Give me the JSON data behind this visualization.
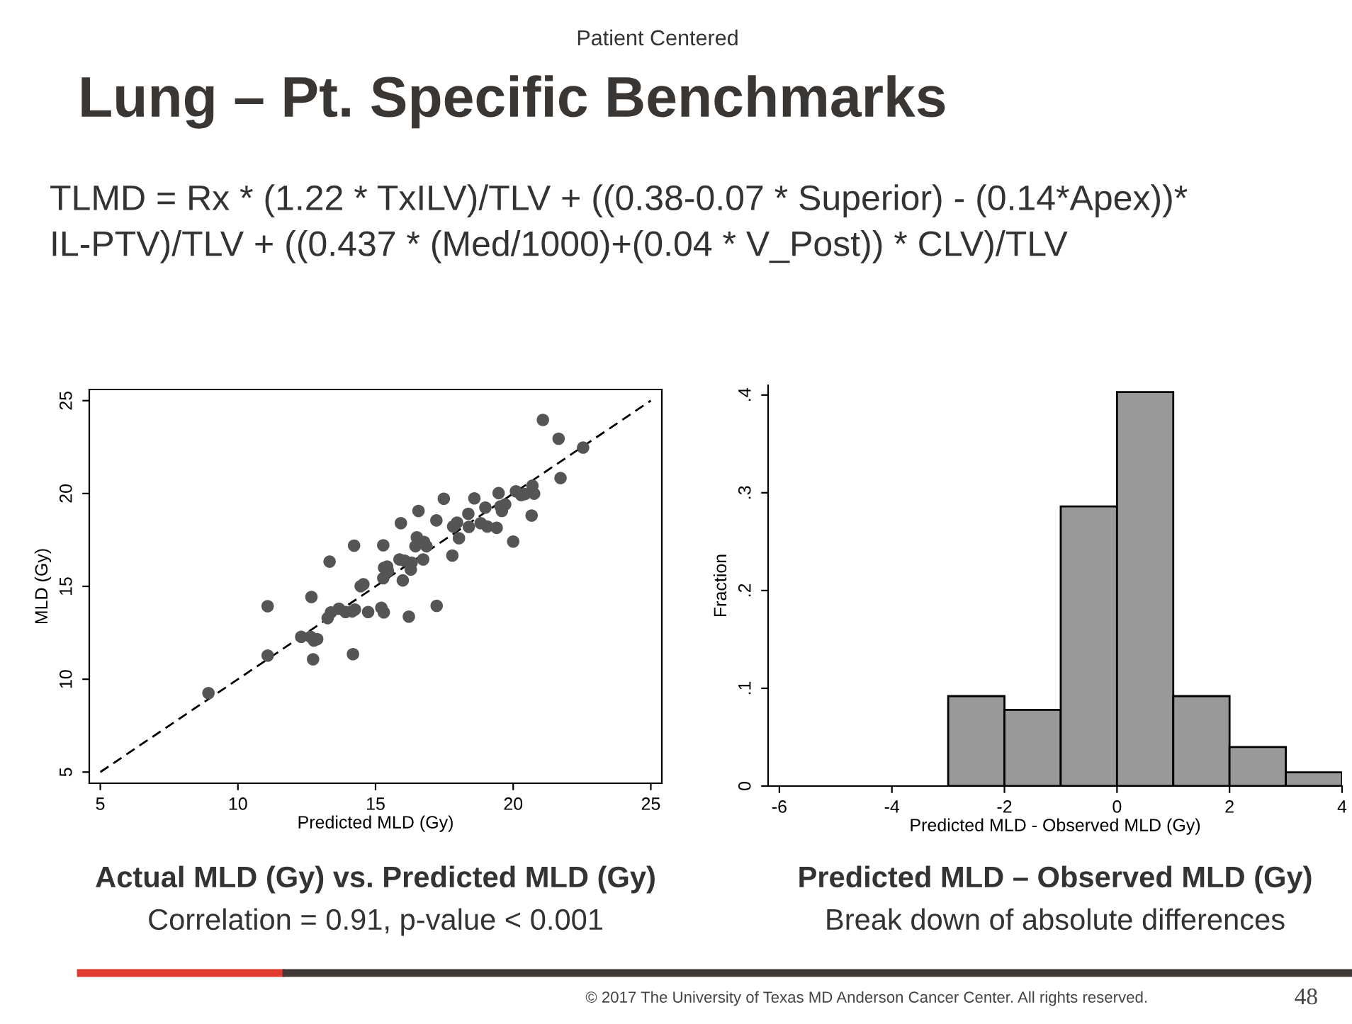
{
  "chart_data": [
    {
      "type": "scatter",
      "title": "Actual MLD (Gy) vs. Predicted MLD (Gy)",
      "subtitle": "Correlation = 0.91, p-value < 0.001",
      "xlabel": "Predicted MLD (Gy)",
      "ylabel": "MLD (Gy)",
      "annotations": [
        "Patient Centered",
        "Lung – Pt. Specific Benchmarks",
        "TLMD = Rx * (1.22 * TxILV)/TLV + ((0.38-0.07 * Superior) - (0.14*Apex))* IL-PTV)/TLV + ((0.437 * (Med/1000)+(0.04 * V_Post)) * CLV)/TLV",
        "© 2017 The University of Texas MD Anderson Cancer Center. All rights reserved.",
        "48"
      ],
      "xlim": [
        4.6,
        25.4
      ],
      "ylim": [
        4.4,
        25.6
      ],
      "xticks": [
        5,
        10,
        15,
        20,
        25
      ],
      "yticks": [
        5,
        10,
        15,
        20,
        25
      ],
      "grid": false,
      "marker": "circle",
      "series": [
        {
          "type": "scatter",
          "color": "#555555",
          "x": [
            8.93,
            11.08,
            11.08,
            12.3,
            12.64,
            12.67,
            12.73,
            12.76,
            12.88,
            13.26,
            13.33,
            13.38,
            13.67,
            13.91,
            14.15,
            14.22,
            14.18,
            14.25,
            14.46,
            14.56,
            14.73,
            15.21,
            15.28,
            15.28,
            15.3,
            15.31,
            15.42,
            15.45,
            15.92,
            15.87,
            15.99,
            16.06,
            16.21,
            16.28,
            16.31,
            16.45,
            16.5,
            16.56,
            16.73,
            16.76,
            16.85,
            17.21,
            17.22,
            17.48,
            17.79,
            17.82,
            17.96,
            18.03,
            18.37,
            18.39,
            18.59,
            18.82,
            18.99,
            19.06,
            19.4,
            19.47,
            19.54,
            19.59,
            19.71,
            20.0,
            20.1,
            20.29,
            20.43,
            20.67,
            20.7,
            20.76,
            21.08,
            21.65,
            21.72,
            22.54
          ],
          "values": [
            9.25,
            13.93,
            11.27,
            12.28,
            12.28,
            14.43,
            11.07,
            12.08,
            12.16,
            13.29,
            16.33,
            13.6,
            13.8,
            13.62,
            13.65,
            17.19,
            11.35,
            13.75,
            15.01,
            15.11,
            13.62,
            13.85,
            17.21,
            15.44,
            13.6,
            16.0,
            16.07,
            15.82,
            18.4,
            16.45,
            15.32,
            16.38,
            13.37,
            15.9,
            16.28,
            17.16,
            17.64,
            19.06,
            16.45,
            17.39,
            17.16,
            18.55,
            13.95,
            19.72,
            16.66,
            18.22,
            18.43,
            17.59,
            18.91,
            18.2,
            19.74,
            18.4,
            19.24,
            18.22,
            18.15,
            20.02,
            19.31,
            19.06,
            19.41,
            17.41,
            20.12,
            19.92,
            19.97,
            18.81,
            20.42,
            19.99,
            23.96,
            22.95,
            20.83,
            22.47
          ]
        },
        {
          "type": "line",
          "color": "#000000",
          "line_style": "dashed",
          "marker": "none",
          "x": [
            5,
            25
          ],
          "values": [
            5,
            25
          ]
        }
      ]
    },
    {
      "type": "histogram",
      "title": "Predicted MLD – Observed MLD (Gy)",
      "subtitle": "Break down of absolute differences",
      "xlabel": "Predicted MLD - Observed MLD (Gy)",
      "ylabel": "Fraction",
      "bins": [
        -3,
        -2,
        -1,
        0,
        1,
        2,
        3,
        4
      ],
      "values": [
        0.092,
        0.078,
        0.286,
        0.403,
        0.092,
        0.04,
        0.014
      ],
      "color": "#999999",
      "xlim": [
        -6.2,
        4
      ],
      "ylim": [
        0,
        0.41
      ],
      "xticks": [
        -6,
        -4,
        -2,
        0,
        2,
        4
      ],
      "yticks": [
        0,
        {
          "value": 0.1,
          "label": ".1"
        },
        {
          "value": 0.2,
          "label": ".2"
        },
        {
          "value": 0.3,
          "label": ".3"
        },
        {
          "value": 0.4,
          "label": ".4"
        }
      ],
      "grid": false
    }
  ]
}
